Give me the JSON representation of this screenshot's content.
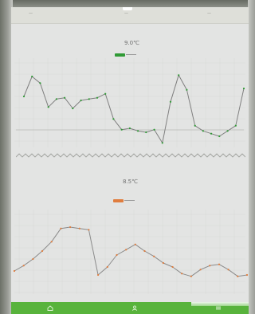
{
  "tabs": [
    {
      "label": "—"
    },
    {
      "label": "—"
    },
    {
      "label": "—"
    }
  ],
  "colors": {
    "top_series": "#2f9a35",
    "bottom_series": "#e07d3e",
    "nav_bar": "#58b33c",
    "screen_bg": "#e3e4e3"
  },
  "chart_top": {
    "title": "",
    "value": "9.0℃",
    "legend_label": ""
  },
  "chart_bottom": {
    "title": "",
    "value": "8.5℃",
    "legend_label": ""
  },
  "chart_data": [
    {
      "type": "line",
      "series": [
        {
          "values": [
            7.6,
            9.1,
            8.6,
            6.8,
            7.4,
            7.5,
            6.7,
            7.3,
            7.4,
            7.5,
            7.8,
            5.9,
            5.1,
            5.2,
            5.0,
            4.9,
            5.1,
            4.1,
            7.2,
            9.2,
            8.1,
            5.4,
            5.0,
            4.8,
            4.6,
            5.0,
            5.4,
            8.2
          ]
        }
      ]
    },
    {
      "type": "line",
      "series": [
        {
          "values": [
            3.5,
            3.9,
            4.4,
            5.0,
            5.7,
            6.7,
            6.8,
            6.7,
            6.6,
            3.2,
            3.8,
            4.7,
            5.1,
            5.5,
            5.0,
            4.6,
            4.1,
            3.8,
            3.3,
            3.1,
            3.6,
            3.9,
            4.0,
            3.6,
            3.1,
            3.2
          ]
        }
      ]
    }
  ],
  "nav": [
    {
      "icon": "home-icon"
    },
    {
      "icon": "profile-icon"
    },
    {
      "icon": "menu-icon"
    }
  ]
}
